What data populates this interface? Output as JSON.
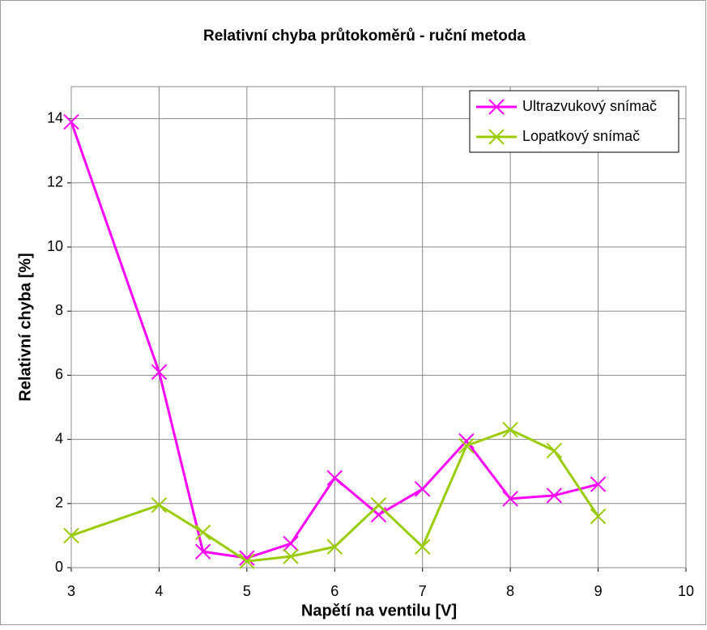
{
  "chart_data": {
    "type": "line",
    "title": "Relativní chyba průtokoměrů - ruční metoda",
    "xlabel": "Napětí na ventilu [V]",
    "ylabel": "Relativní chyba [%]",
    "x": [
      3,
      4,
      4.5,
      5,
      5.5,
      6,
      6.5,
      7,
      7.5,
      8,
      8.5,
      9
    ],
    "series": [
      {
        "name": "Ultrazvukový snímač",
        "color": "#ff00ff",
        "values": [
          13.9,
          6.1,
          0.5,
          0.3,
          0.75,
          2.8,
          1.65,
          2.45,
          3.95,
          2.15,
          2.25,
          2.6
        ]
      },
      {
        "name": "Lopatkový snímač",
        "color": "#99cc00",
        "values": [
          1.0,
          1.95,
          1.1,
          0.2,
          0.35,
          0.65,
          1.95,
          0.65,
          3.8,
          4.3,
          3.65,
          1.6
        ]
      }
    ],
    "xlim": [
      3,
      10
    ],
    "xticks": [
      3,
      4,
      5,
      6,
      7,
      8,
      9,
      10
    ],
    "ylim": [
      0,
      15
    ],
    "yticks": [
      0,
      2,
      4,
      6,
      8,
      10,
      12,
      14
    ],
    "grid": true,
    "legend": "upper right"
  }
}
